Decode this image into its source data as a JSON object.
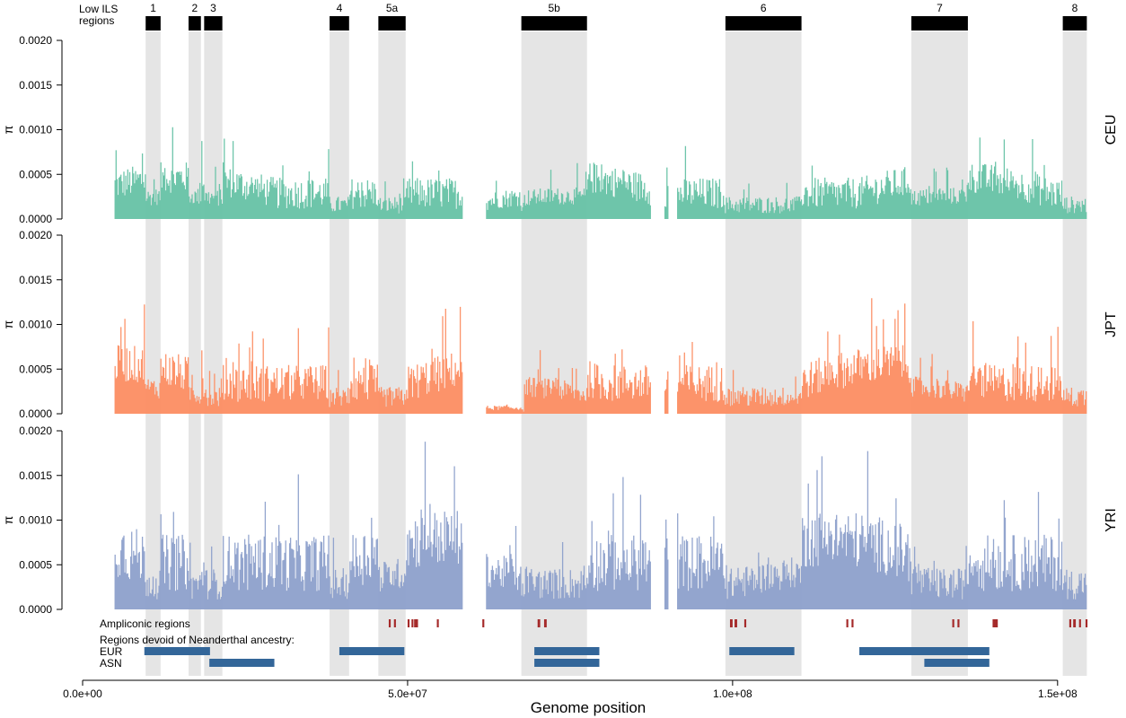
{
  "chart_data": {
    "type": "area",
    "xlabel": "Genome position",
    "ylabel": "π",
    "xlim": [
      0,
      155000000
    ],
    "ylim": [
      0,
      0.002
    ],
    "x_ticks": [
      0,
      50000000,
      100000000,
      150000000
    ],
    "x_tick_labels": [
      "0.0e+00",
      "5.0e+07",
      "1.0e+08",
      "1.5e+08"
    ],
    "y_tick_labels": [
      "0.0000",
      "0.0005",
      "0.0010",
      "0.0015",
      "0.0020"
    ],
    "y_ticks": [
      0,
      0.0005,
      0.001,
      0.0015,
      0.002
    ],
    "low_ils_label": [
      "Low ILS",
      "regions"
    ],
    "low_ils_regions": [
      {
        "label": "1",
        "start": 9700000,
        "end": 12000000
      },
      {
        "label": "2",
        "start": 16300000,
        "end": 18200000
      },
      {
        "label": "3",
        "start": 18700000,
        "end": 21500000
      },
      {
        "label": "4",
        "start": 38000000,
        "end": 41000000
      },
      {
        "label": "5a",
        "start": 45500000,
        "end": 49700000
      },
      {
        "label": "5b",
        "start": 67500000,
        "end": 77600000
      },
      {
        "label": "6",
        "start": 98900000,
        "end": 110600000
      },
      {
        "label": "7",
        "start": 127500000,
        "end": 136200000
      },
      {
        "label": "8",
        "start": 150800000,
        "end": 154500000
      }
    ],
    "gaps": [
      [
        58500000,
        62000000
      ],
      [
        87500000,
        89500000
      ],
      [
        90200000,
        91500000
      ]
    ],
    "series": [
      {
        "name": "CEU",
        "color": "#66c2a5",
        "typical": 0.00032,
        "trend": 0.00018
      },
      {
        "name": "JPT",
        "color": "#fc8d62",
        "typical": 0.00038,
        "trend": 0.00022
      },
      {
        "name": "YRI",
        "color": "#8da0cb",
        "typical": 0.00058,
        "trend": 0.00028
      }
    ],
    "ampliconic_label": "Ampliconic regions",
    "ampliconic_color": "#a52a2a",
    "ampliconic_regions": [
      [
        47100000,
        47400000
      ],
      [
        47900000,
        48200000
      ],
      [
        50000000,
        50300000
      ],
      [
        50600000,
        50900000
      ],
      [
        51000000,
        51600000
      ],
      [
        54500000,
        54800000
      ],
      [
        61500000,
        61800000
      ],
      [
        70000000,
        70400000
      ],
      [
        71000000,
        71400000
      ],
      [
        99600000,
        100000000
      ],
      [
        100300000,
        100700000
      ],
      [
        101800000,
        102100000
      ],
      [
        117500000,
        117800000
      ],
      [
        118300000,
        118600000
      ],
      [
        133800000,
        134100000
      ],
      [
        134600000,
        134900000
      ],
      [
        140000000,
        140800000
      ],
      [
        151800000,
        152100000
      ],
      [
        152400000,
        152800000
      ],
      [
        153300000,
        153600000
      ],
      [
        154300000,
        154600000
      ]
    ],
    "neanderthal_title": "Regions devoid of Neanderthal ancestry:",
    "neanderthal_color": "#336699",
    "neanderthal_rows": [
      {
        "label": "EUR",
        "regions": [
          [
            9500000,
            19600000
          ],
          [
            39500000,
            49500000
          ],
          [
            69500000,
            79500000
          ],
          [
            99500000,
            109500000
          ],
          [
            119500000,
            139500000
          ]
        ]
      },
      {
        "label": "ASN",
        "regions": [
          [
            19500000,
            29500000
          ],
          [
            69500000,
            79500000
          ],
          [
            129500000,
            139500000
          ]
        ]
      }
    ]
  }
}
